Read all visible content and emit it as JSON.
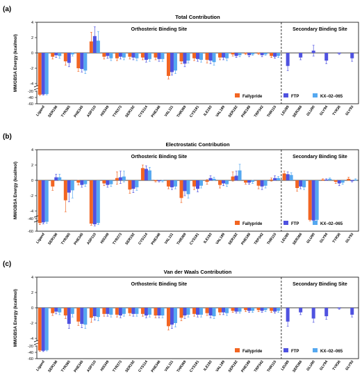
{
  "figure": {
    "categories": [
      "Ligand",
      "SER196",
      "TYR365",
      "PHE345",
      "ASP110",
      "HIS349",
      "TYR373",
      "SER192",
      "CYS114",
      "PHE346",
      "VAL111",
      "THR369",
      "CYS181",
      "ILE183",
      "VAL189",
      "SER182",
      "PHE188",
      "TRP342",
      "THR115",
      "LEU89",
      "SER366",
      "GLU90",
      "GLY94",
      "TYR36",
      "GLY93"
    ],
    "sites": {
      "orthosteric": "Orthosteric Binding Site",
      "secondary": "Secondary Binding Site"
    },
    "ylabel": "MM/GBSA Energy (kcal/mol)",
    "legend": [
      "Fallypride",
      "FTP",
      "KX−02−065"
    ],
    "colors": {
      "Fallypride": "#f26522",
      "FTP": "#4f52e0",
      "KX-02-065": "#55a8f0",
      "axis": "#000000"
    }
  },
  "chart_data": [
    {
      "panel_label": "(a)",
      "title": "Total Contribution",
      "type": "bar",
      "ylim": [
        -60,
        4
      ],
      "axis_break": [
        -20,
        -4
      ],
      "yticks": [
        4,
        2,
        0,
        -2,
        -4,
        -20,
        -40,
        -60
      ],
      "categories": [
        "Ligand",
        "SER196",
        "TYR365",
        "PHE345",
        "ASP110",
        "HIS349",
        "TYR373",
        "SER192",
        "CYS114",
        "PHE346",
        "VAL111",
        "THR369",
        "CYS181",
        "ILE183",
        "VAL189",
        "SER182",
        "PHE188",
        "TRP342",
        "THR115",
        "LEU89",
        "SER366",
        "GLU90",
        "GLY94",
        "TYR36",
        "GLY93"
      ],
      "series": [
        {
          "name": "Fallypride",
          "values": [
            -31,
            -0.5,
            -1.1,
            -2.0,
            1.5,
            -0.5,
            -0.7,
            -0.5,
            -0.6,
            -0.6,
            -3.0,
            -1.1,
            -0.7,
            -0.9,
            -0.6,
            -0.2,
            -0.1,
            -0.1,
            -0.4,
            0,
            0,
            0,
            0,
            0,
            0
          ],
          "errors": [
            2.5,
            0.3,
            0.5,
            0.4,
            1.2,
            0.3,
            0.3,
            0.3,
            0.3,
            0.3,
            0.4,
            0.3,
            0.3,
            0.4,
            0.3,
            0.2,
            0.1,
            0.1,
            0.2,
            0,
            0,
            0,
            0,
            0,
            0
          ]
        },
        {
          "name": "FTP",
          "values": [
            -30,
            -0.3,
            -1.3,
            -2.1,
            2.2,
            -0.4,
            -0.5,
            -0.6,
            -0.9,
            -0.8,
            -2.5,
            -1.4,
            -0.8,
            -1.0,
            -0.6,
            -0.4,
            -0.3,
            -0.3,
            -0.5,
            -1.7,
            -0.6,
            0.3,
            -1.0,
            -0.1,
            -0.7
          ],
          "errors": [
            2.5,
            0.3,
            0.5,
            0.4,
            1.2,
            0.3,
            0.3,
            0.3,
            0.3,
            0.3,
            0.4,
            0.4,
            0.3,
            0.4,
            0.3,
            0.2,
            0.2,
            0.2,
            0.2,
            0.6,
            0.3,
            0.7,
            0.4,
            0.1,
            0.4
          ]
        },
        {
          "name": "KX-02-065",
          "values": [
            -29,
            -0.4,
            -0.2,
            -2.3,
            1.6,
            -0.7,
            -0.6,
            -0.7,
            -0.8,
            -0.8,
            -2.3,
            -1.0,
            -0.9,
            -1.2,
            -0.7,
            -0.3,
            -0.2,
            -0.2,
            -0.4,
            0,
            0,
            0,
            0,
            0,
            0
          ],
          "errors": [
            2.5,
            0.3,
            0.2,
            0.4,
            1.2,
            0.3,
            0.3,
            0.3,
            0.3,
            0.3,
            0.4,
            0.3,
            0.3,
            0.4,
            0.3,
            0.2,
            0.1,
            0.1,
            0.2,
            0,
            0,
            0,
            0,
            0,
            0
          ]
        }
      ]
    },
    {
      "panel_label": "(b)",
      "title": "Electrostatic Contribution",
      "type": "bar",
      "ylim": [
        -60,
        4
      ],
      "axis_break": [
        -40,
        -5
      ],
      "yticks": [
        4,
        2,
        0,
        -2,
        -4,
        -40,
        -60
      ],
      "categories": [
        "Ligand",
        "SER196",
        "TYR365",
        "PHE345",
        "ASP110",
        "HIS349",
        "TYR373",
        "SER192",
        "CYS114",
        "PHE346",
        "VAL111",
        "THR369",
        "CYS181",
        "ILE183",
        "VAL189",
        "SER182",
        "PHE188",
        "TRP342",
        "THR115",
        "LEU89",
        "SER366",
        "GLU90",
        "GLY94",
        "TYR36",
        "GLY93"
      ],
      "series": [
        {
          "name": "Fallypride",
          "values": [
            -47,
            -0.8,
            -2.6,
            -0.3,
            -48,
            -0.4,
            0.3,
            -1.2,
            1.6,
            -0.1,
            -0.8,
            -2.3,
            -0.8,
            -0.2,
            -0.6,
            0.5,
            -0.3,
            -0.7,
            0.1,
            0.9,
            -1.0,
            -42,
            0.1,
            -0.2,
            0.2
          ],
          "errors": [
            2.5,
            0.5,
            1.5,
            0.3,
            2.5,
            0.3,
            0.8,
            0.5,
            0.4,
            0.1,
            0.3,
            0.6,
            0.4,
            0.3,
            0.4,
            0.6,
            0.2,
            0.4,
            0.2,
            0.3,
            0.4,
            1.5,
            0.1,
            0.2,
            0.2
          ]
        },
        {
          "name": "FTP",
          "values": [
            -46,
            0.4,
            -1.6,
            -0.6,
            -49,
            -0.6,
            0.4,
            -1.1,
            1.5,
            -0.1,
            -0.9,
            -1.4,
            -1.1,
            0.3,
            -0.4,
            0.6,
            -0.3,
            -0.8,
            0.3,
            0.8,
            -0.8,
            -43,
            0.1,
            -0.4,
            -0.1
          ],
          "errors": [
            2.5,
            0.4,
            1.2,
            0.3,
            2.5,
            0.3,
            0.8,
            0.5,
            0.4,
            0.1,
            0.3,
            0.6,
            0.4,
            0.3,
            0.3,
            0.6,
            0.2,
            0.4,
            0.3,
            0.3,
            0.3,
            1.5,
            0.1,
            0.3,
            0.1
          ]
        },
        {
          "name": "KX-02-065",
          "values": [
            -45,
            0.4,
            -1.3,
            -0.5,
            -47,
            -0.5,
            0.5,
            -0.9,
            1.3,
            -0.1,
            -0.8,
            -1.8,
            -0.7,
            0.2,
            -0.5,
            1.3,
            -0.2,
            -0.7,
            0.3,
            0.7,
            -0.9,
            -42,
            0.2,
            -0.3,
            0.1
          ],
          "errors": [
            2.5,
            0.4,
            1.0,
            0.3,
            2.5,
            0.3,
            0.7,
            0.4,
            0.4,
            0.1,
            0.3,
            0.5,
            0.3,
            0.2,
            0.3,
            0.8,
            0.2,
            0.3,
            0.2,
            0.3,
            0.3,
            1.5,
            0.1,
            0.2,
            0.1
          ]
        }
      ]
    },
    {
      "panel_label": "(c)",
      "title": "Van der Waals Contribution",
      "type": "bar",
      "ylim": [
        -60,
        4
      ],
      "axis_break": [
        -20,
        -4
      ],
      "yticks": [
        4,
        2,
        0,
        -2,
        -4,
        -20,
        -40,
        -60
      ],
      "categories": [
        "Ligand",
        "SER196",
        "TYR365",
        "PHE345",
        "ASP110",
        "HIS349",
        "TYR373",
        "SER192",
        "CYS114",
        "PHE346",
        "VAL111",
        "THR369",
        "CYS181",
        "ILE183",
        "VAL189",
        "SER182",
        "PHE188",
        "TRP342",
        "THR115",
        "LEU89",
        "SER366",
        "GLU90",
        "GLY94",
        "TYR36",
        "GLY93"
      ],
      "series": [
        {
          "name": "Fallypride",
          "values": [
            -34,
            -0.7,
            -1.0,
            -1.8,
            -1.3,
            -0.8,
            -0.9,
            -0.7,
            -0.8,
            -1.0,
            -2.4,
            -1.3,
            -0.8,
            -0.7,
            -0.6,
            -0.4,
            -0.3,
            -0.3,
            -0.4,
            0,
            0,
            0,
            0,
            0,
            0
          ],
          "errors": [
            2.5,
            0.3,
            0.4,
            0.5,
            0.6,
            0.3,
            0.3,
            0.3,
            0.3,
            0.3,
            0.5,
            0.4,
            0.3,
            0.3,
            0.3,
            0.2,
            0.2,
            0.2,
            0.2,
            0,
            0,
            0,
            0,
            0,
            0
          ]
        },
        {
          "name": "FTP",
          "values": [
            -35,
            -0.5,
            -2.1,
            -2.1,
            -1.1,
            -0.8,
            -1.0,
            -0.8,
            -1.0,
            -1.0,
            -2.2,
            -1.0,
            -0.9,
            -1.0,
            -0.6,
            -0.5,
            -0.4,
            -0.4,
            -0.5,
            -1.8,
            -0.6,
            -1.4,
            -1.1,
            -0.1,
            -0.9
          ],
          "errors": [
            2.5,
            0.3,
            0.6,
            0.5,
            0.5,
            0.3,
            0.3,
            0.3,
            0.3,
            0.3,
            0.5,
            0.4,
            0.3,
            0.3,
            0.3,
            0.2,
            0.2,
            0.2,
            0.2,
            0.6,
            0.3,
            0.5,
            0.4,
            0.1,
            0.3
          ]
        },
        {
          "name": "KX-02-065",
          "values": [
            -33,
            -0.6,
            -0.8,
            -2.2,
            -1.2,
            -0.9,
            -0.8,
            -0.8,
            -0.9,
            -1.0,
            -2.0,
            -0.9,
            -0.9,
            -1.1,
            -0.7,
            -0.5,
            -0.4,
            -0.3,
            -0.4,
            0,
            0,
            0,
            0,
            0,
            0
          ],
          "errors": [
            2.5,
            0.3,
            0.4,
            0.5,
            0.5,
            0.3,
            0.3,
            0.3,
            0.3,
            0.3,
            0.5,
            0.3,
            0.3,
            0.3,
            0.3,
            0.2,
            0.2,
            0.2,
            0.2,
            0,
            0,
            0,
            0,
            0,
            0
          ]
        }
      ]
    }
  ]
}
